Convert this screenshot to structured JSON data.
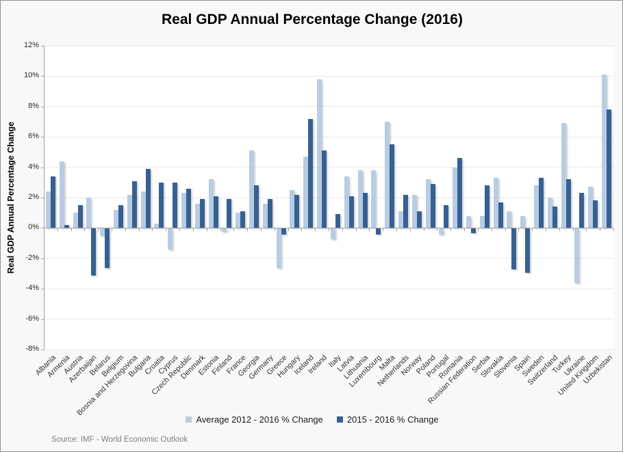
{
  "source": "Source: IMF - World Economic Outlook",
  "chart_data": {
    "type": "bar",
    "title": "Real GDP Annual Percentage Change (2016)",
    "ylabel": "Real GDP Annual Percentage Change",
    "xlabel": "",
    "ylim": [
      -8,
      12
    ],
    "ytick_step": 2,
    "yticks": [
      "12%",
      "10%",
      "8%",
      "6%",
      "4%",
      "2%",
      "0%",
      "-2%",
      "-4%",
      "-6%",
      "-8%"
    ],
    "grid": true,
    "legend_position": "bottom",
    "categories": [
      "Albania",
      "Armenia",
      "Austria",
      "Azerbaijan",
      "Belarus",
      "Belgium",
      "Bosnia and Herzegovina",
      "Bulgaria",
      "Croatia",
      "Cyprus",
      "Czech Republic",
      "Denmark",
      "Estonia",
      "Finland",
      "France",
      "Georgia",
      "Germany",
      "Greece",
      "Hungary",
      "Iceland",
      "Ireland",
      "Italy",
      "Latvia",
      "Lithuania",
      "Luxembourg",
      "Malta",
      "Netherlands",
      "Norway",
      "Poland",
      "Portugal",
      "Romania",
      "Russian Federation",
      "Serbia",
      "Slovakia",
      "Slovenia",
      "Spain",
      "Sweden",
      "Switzerland",
      "Turkey",
      "Ukraine",
      "United Kingdom",
      "Uzbekistan"
    ],
    "series": [
      {
        "name": "Average 2012 - 2016 % Change",
        "color": "#b8cce4",
        "values": [
          2.4,
          4.4,
          1.0,
          2.0,
          -0.5,
          1.2,
          2.2,
          2.4,
          0.3,
          -1.4,
          2.3,
          1.6,
          3.2,
          -0.2,
          1.0,
          5.1,
          1.6,
          -2.6,
          2.5,
          4.7,
          9.8,
          -0.7,
          3.4,
          3.8,
          3.8,
          7.0,
          1.1,
          2.2,
          3.2,
          -0.4,
          4.0,
          0.8,
          0.8,
          3.3,
          1.1,
          0.8,
          2.8,
          2.0,
          6.9,
          -3.6,
          2.7,
          10.1
        ]
      },
      {
        "name": "2015 - 2016 % Change",
        "color": "#376092",
        "values": [
          3.4,
          0.2,
          1.5,
          -3.1,
          -2.6,
          1.5,
          3.1,
          3.9,
          3.0,
          3.0,
          2.6,
          1.9,
          2.1,
          1.9,
          1.1,
          2.8,
          1.9,
          -0.4,
          2.2,
          7.2,
          5.1,
          0.9,
          2.1,
          2.3,
          -0.4,
          5.5,
          2.2,
          1.1,
          2.9,
          1.5,
          4.6,
          -0.3,
          2.8,
          1.7,
          -2.7,
          -2.9,
          3.3,
          1.4,
          3.2,
          2.3,
          1.8,
          7.8
        ]
      }
    ]
  }
}
